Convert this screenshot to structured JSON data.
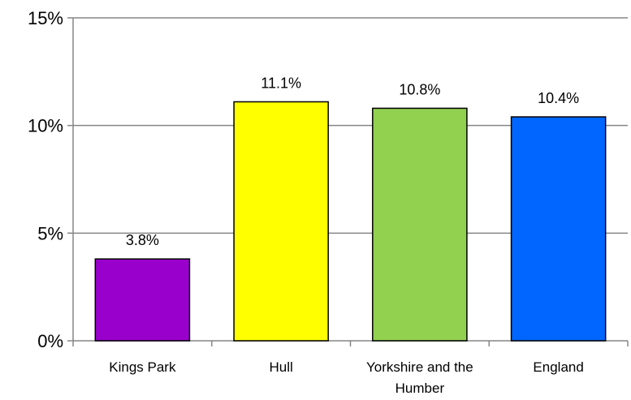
{
  "chart_data": {
    "type": "bar",
    "title": "",
    "xlabel": "",
    "ylabel": "",
    "categories": [
      "Kings Park",
      "Hull",
      "Yorkshire and the Humber",
      "England"
    ],
    "category_lines": [
      [
        "Kings Park"
      ],
      [
        "Hull"
      ],
      [
        "Yorkshire and the",
        "Humber"
      ],
      [
        "England"
      ]
    ],
    "values": [
      3.8,
      11.1,
      10.8,
      10.4
    ],
    "data_labels": [
      "3.8%",
      "11.1%",
      "10.8%",
      "10.4%"
    ],
    "ylim": [
      0,
      15
    ],
    "yticks": [
      0,
      5,
      10,
      15
    ],
    "ytick_labels": [
      "0%",
      "5%",
      "10%",
      "15%"
    ],
    "grid": true,
    "legend": "none",
    "colors": [
      "#9900cc",
      "#ffff00",
      "#92d050",
      "#0066ff"
    ]
  }
}
